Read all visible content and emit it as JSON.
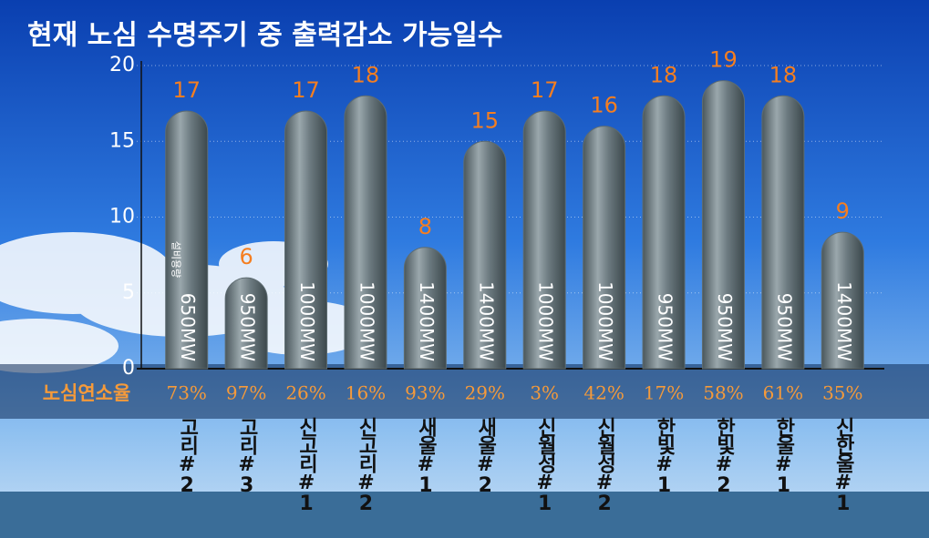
{
  "chart_data": {
    "type": "bar",
    "title": "현재 노심 수명주기 중 출력감소 가능일수",
    "categories": [
      "고리#2",
      "고리#3",
      "신고리#1",
      "신고리#2",
      "새울#1",
      "새울#2",
      "신월성#1",
      "신월성#2",
      "한빛#1",
      "한빛#2",
      "한울#1",
      "신한울#1"
    ],
    "values": [
      17,
      6,
      17,
      18,
      8,
      15,
      17,
      16,
      18,
      19,
      18,
      9
    ],
    "color": "#5e6c71",
    "ylim": [
      0,
      20
    ],
    "yticks": [
      0,
      5,
      10,
      15,
      20
    ],
    "grid": true,
    "capacity_label": "설비용량",
    "capacities": [
      "650MW",
      "950MW",
      "1000MW",
      "1000MW",
      "1400MW",
      "1400MW",
      "1000MW",
      "1000MW",
      "950MW",
      "950MW",
      "950MW",
      "1400MW"
    ],
    "burnup_label": "노심연소율",
    "burnup": [
      "73%",
      "97%",
      "26%",
      "16%",
      "93%",
      "29%",
      "3%",
      "42%",
      "17%",
      "58%",
      "61%",
      "35%"
    ]
  }
}
